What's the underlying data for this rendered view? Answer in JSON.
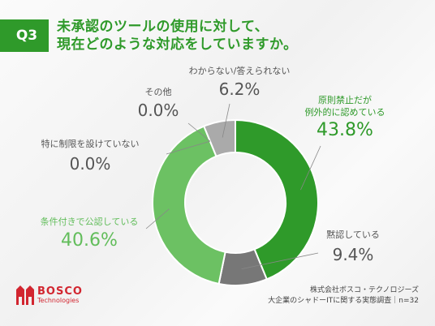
{
  "header": {
    "q_label": "Q3",
    "question_line1": "未承認のツールの使用に対して、",
    "question_line2": "現在どのような対応をしていますか。"
  },
  "chart_data": {
    "type": "pie",
    "slices": [
      {
        "label_line1": "原則禁止だが",
        "label_line2": "例外的に認めている",
        "value": 43.8,
        "value_text": "43.8%",
        "color": "#2f9a2a"
      },
      {
        "label_line1": "黙認している",
        "label_line2": "",
        "value": 9.4,
        "value_text": "9.4%",
        "color": "#777777"
      },
      {
        "label_line1": "条件付きで公認している",
        "label_line2": "",
        "value": 40.6,
        "value_text": "40.6%",
        "color": "#6cc163"
      },
      {
        "label_line1": "特に制限を設けていない",
        "label_line2": "",
        "value": 0.0,
        "value_text": "0.0%",
        "color": "#9be08f"
      },
      {
        "label_line1": "その他",
        "label_line2": "",
        "value": 0.0,
        "value_text": "0.0%",
        "color": "#cccccc"
      },
      {
        "label_line1": "わからない/答えられない",
        "label_line2": "",
        "value": 6.2,
        "value_text": "6.2%",
        "color": "#aaaaaa"
      }
    ]
  },
  "logo": {
    "brand": "BOSCO",
    "sub": "Technologies"
  },
  "source": {
    "line1": "株式会社ボスコ・テクノロジーズ",
    "line2": "大企業のシャドーITに関する実態調査｜n=32"
  }
}
